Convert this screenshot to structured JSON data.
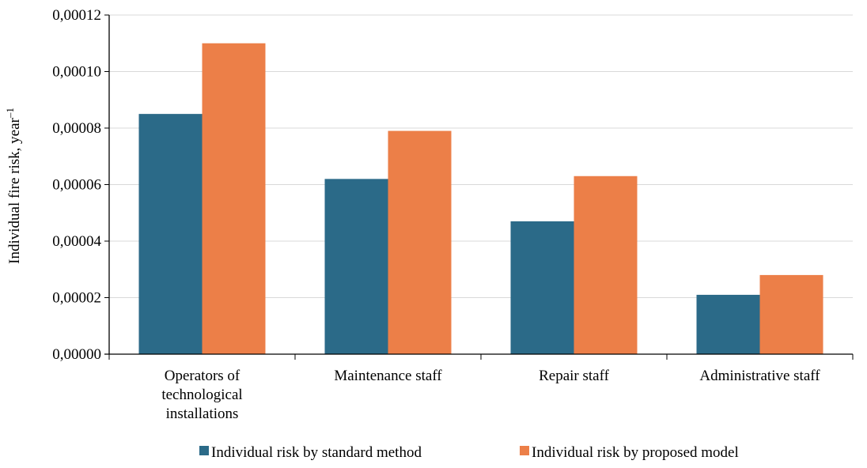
{
  "chart_data": {
    "type": "bar",
    "title": "",
    "xlabel": "",
    "ylabel": "Individual fire risk, year",
    "ylabel_superscript": "–1",
    "categories": [
      [
        "Operators of",
        "technological",
        "installations"
      ],
      [
        "Maintenance staff"
      ],
      [
        "Repair staff"
      ],
      [
        "Administrative staff"
      ]
    ],
    "series": [
      {
        "name": "Individual risk by standard method",
        "color": "#2b6a88",
        "values": [
          8.5e-05,
          6.2e-05,
          4.7e-05,
          2.1e-05
        ]
      },
      {
        "name": "Individual risk by proposed model",
        "color": "#ec7f48",
        "values": [
          0.00011,
          7.9e-05,
          6.3e-05,
          2.8e-05
        ]
      }
    ],
    "ylim": [
      0,
      0.00012
    ],
    "yticks": [
      0,
      2e-05,
      4e-05,
      6e-05,
      8e-05,
      0.0001,
      0.00012
    ],
    "ytick_labels": [
      "0,00000",
      "0,00002",
      "0,00004",
      "0,00006",
      "0,00008",
      "0,00010",
      "0,00012"
    ],
    "grid": true,
    "legend_position": "bottom"
  }
}
